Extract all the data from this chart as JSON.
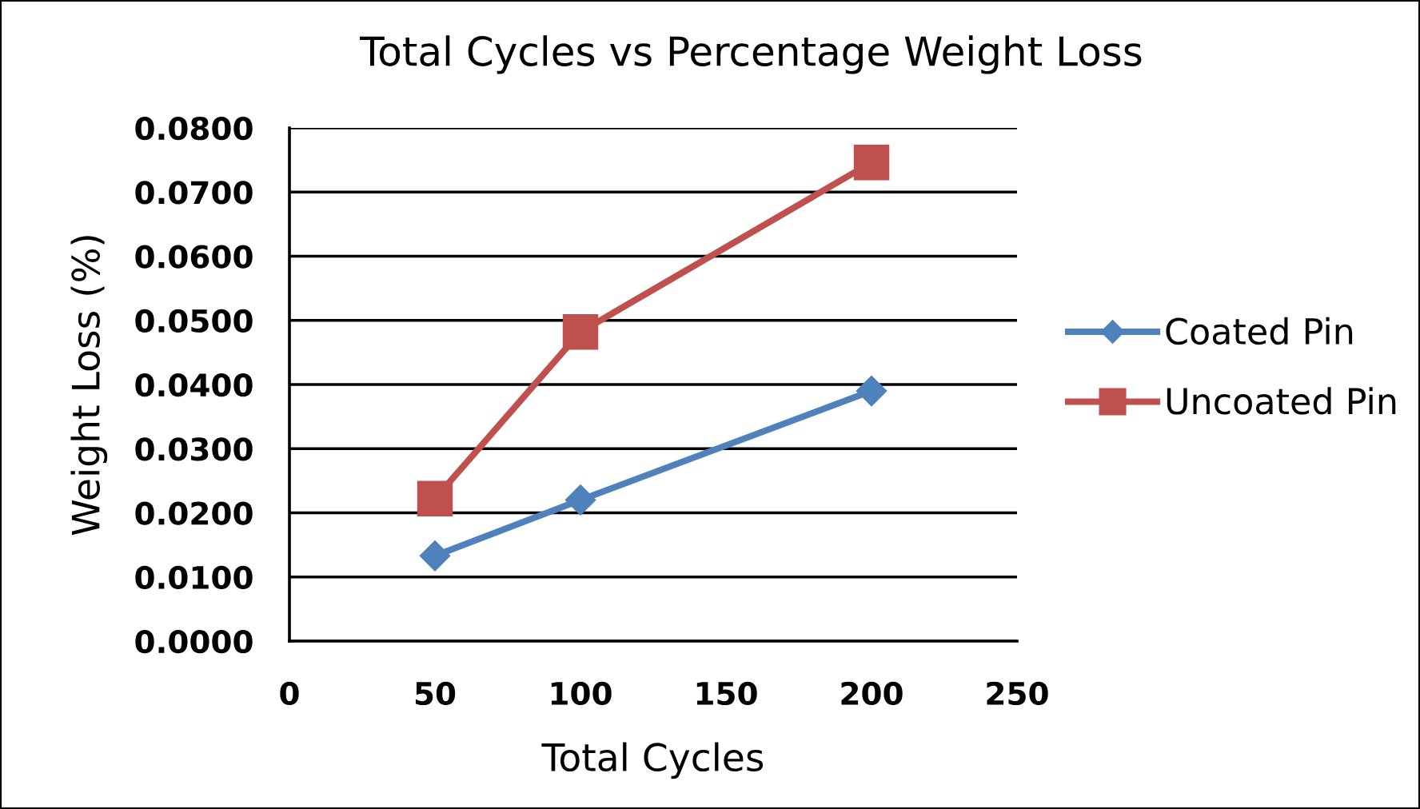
{
  "chart_data": {
    "type": "line",
    "title": "Total Cycles vs Percentage Weight Loss",
    "xlabel": "Total Cycles",
    "ylabel": "Weight Loss (%)",
    "x": [
      50,
      100,
      200
    ],
    "series": [
      {
        "name": "Coated Pin",
        "color": "#4f81bd",
        "marker": "diamond",
        "values": [
          0.0133,
          0.022,
          0.039
        ]
      },
      {
        "name": "Uncoated Pin",
        "color": "#c0504d",
        "marker": "square",
        "values": [
          0.0222,
          0.0482,
          0.0746
        ]
      }
    ],
    "xlim": [
      0,
      250
    ],
    "xticks": [
      0,
      50,
      100,
      150,
      200,
      250
    ],
    "ylim": [
      0,
      0.08
    ],
    "yticks": [
      {
        "value": 0,
        "label": "0.0000"
      },
      {
        "value": 0.01,
        "label": "0.0100"
      },
      {
        "value": 0.02,
        "label": "0.0200"
      },
      {
        "value": 0.03,
        "label": "0.0300"
      },
      {
        "value": 0.04,
        "label": "0.0400"
      },
      {
        "value": 0.05,
        "label": "0.0500"
      },
      {
        "value": 0.06,
        "label": "0.0600"
      },
      {
        "value": 0.07,
        "label": "0.0700"
      },
      {
        "value": 0.08,
        "label": "0.0800"
      }
    ],
    "grid": "y",
    "legend": "right",
    "line_style": "solid"
  }
}
